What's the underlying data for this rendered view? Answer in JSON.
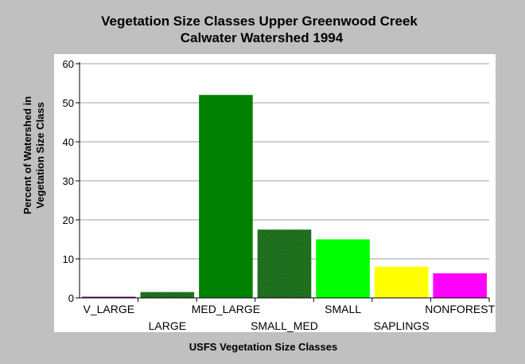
{
  "chart_data": {
    "type": "bar",
    "title": "Vegetation Size Classes Upper Greenwood Creek",
    "subtitle": "Calwater Watershed 1994",
    "xlabel": "USFS Vegetation Size Classes",
    "ylabel_line1": "Percent of Watershed in",
    "ylabel_line2": "Vegetation Size Class",
    "ylim": [
      0,
      60
    ],
    "yticks": [
      0,
      10,
      20,
      30,
      40,
      50,
      60
    ],
    "categories": [
      "V_LARGE",
      "LARGE",
      "MED_LARGE",
      "SMALL_MED",
      "SMALL",
      "SAPLINGS",
      "NONFOREST"
    ],
    "values": [
      0.3,
      1.5,
      52.0,
      17.5,
      15.0,
      8.0,
      6.3
    ],
    "colors": [
      "#800080",
      "#006400",
      "#008000",
      "#006400",
      "#00ff00",
      "#ffff00",
      "#ff00ff"
    ],
    "hatched": [
      false,
      true,
      false,
      true,
      false,
      false,
      false
    ],
    "grid": "horizontal",
    "legend": "none"
  }
}
